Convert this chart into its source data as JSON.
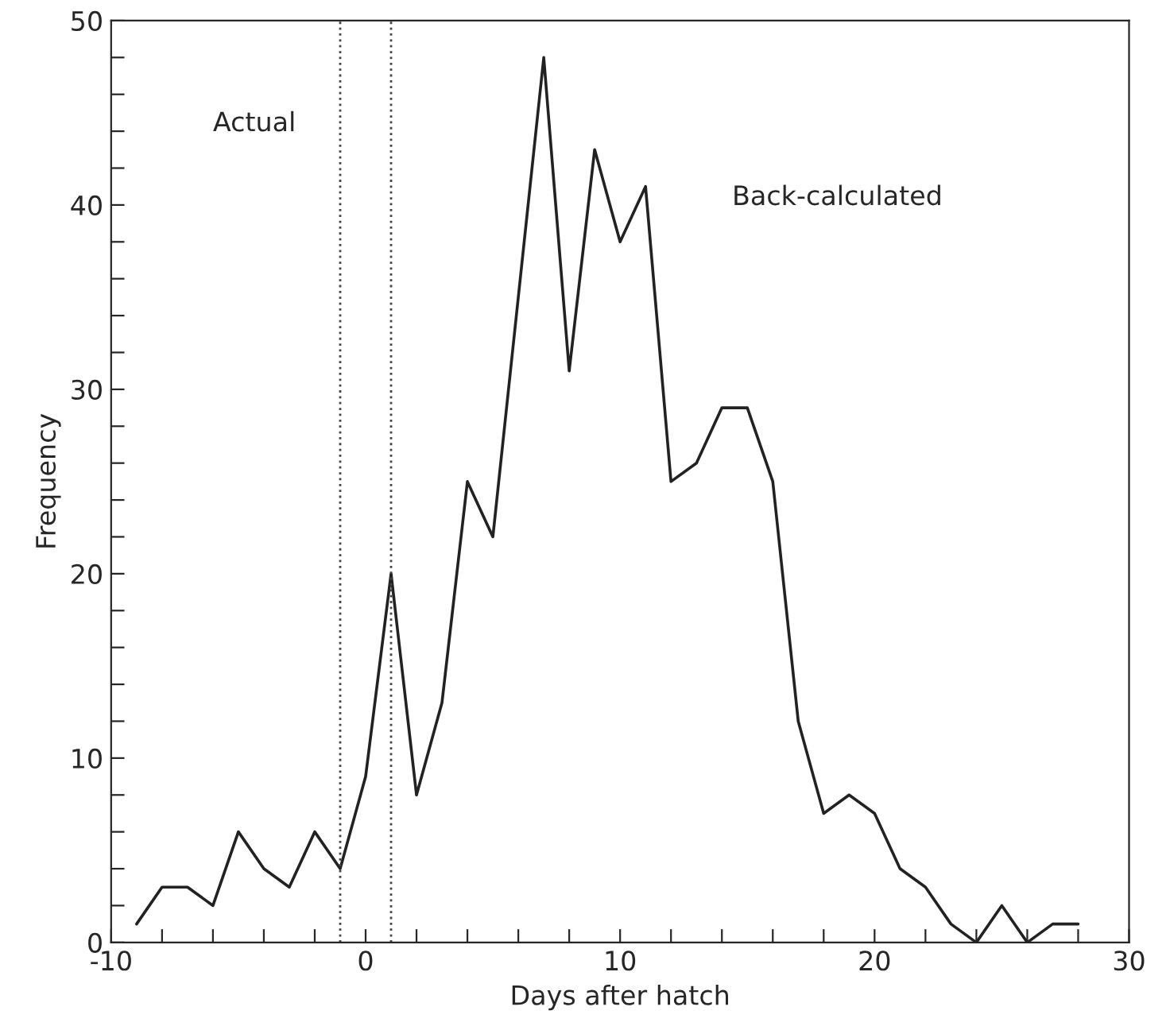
{
  "chart_data": {
    "type": "line",
    "xlabel": "Days after hatch",
    "ylabel": "Frequency",
    "x": [
      -9,
      -8,
      -7,
      -6,
      -5,
      -4,
      -3,
      -2,
      -1,
      0,
      1,
      2,
      3,
      4,
      5,
      6,
      7,
      8,
      9,
      10,
      11,
      12,
      13,
      14,
      15,
      16,
      17,
      18,
      19,
      20,
      21,
      22,
      23,
      24,
      25,
      26,
      27,
      28
    ],
    "series": [
      {
        "color": "#222222",
        "values": [
          1,
          3,
          3,
          2,
          6,
          4,
          3,
          6,
          4,
          9,
          20,
          8,
          13,
          25,
          22,
          35,
          48,
          31,
          43,
          38,
          41,
          25,
          26,
          29,
          29,
          25,
          12,
          7,
          8,
          7,
          4,
          3,
          1,
          0,
          2,
          0,
          1,
          1
        ]
      }
    ],
    "xlim": [
      -10,
      30
    ],
    "xticks": [
      -10,
      {
        "value": -8,
        "label": null
      },
      {
        "value": -6,
        "label": null
      },
      {
        "value": -4,
        "label": null
      },
      {
        "value": -2,
        "label": null
      },
      0,
      {
        "value": 2,
        "label": null
      },
      {
        "value": 4,
        "label": null
      },
      {
        "value": 6,
        "label": null
      },
      {
        "value": 8,
        "label": null
      },
      10,
      {
        "value": 12,
        "label": null
      },
      {
        "value": 14,
        "label": null
      },
      {
        "value": 16,
        "label": null
      },
      {
        "value": 18,
        "label": null
      },
      20,
      {
        "value": 22,
        "label": null
      },
      {
        "value": 24,
        "label": null
      },
      {
        "value": 26,
        "label": null
      },
      {
        "value": 28,
        "label": null
      },
      30
    ],
    "ylim": [
      0,
      50
    ],
    "yticks": [
      0,
      {
        "value": 2,
        "label": null
      },
      {
        "value": 4,
        "label": null
      },
      {
        "value": 6,
        "label": null
      },
      {
        "value": 8,
        "label": null
      },
      10,
      {
        "value": 12,
        "label": null
      },
      {
        "value": 14,
        "label": null
      },
      {
        "value": 16,
        "label": null
      },
      {
        "value": 18,
        "label": null
      },
      20,
      {
        "value": 22,
        "label": null
      },
      {
        "value": 24,
        "label": null
      },
      {
        "value": 26,
        "label": null
      },
      {
        "value": 28,
        "label": null
      },
      30,
      {
        "value": 32,
        "label": null
      },
      {
        "value": 34,
        "label": null
      },
      {
        "value": 36,
        "label": null
      },
      {
        "value": 38,
        "label": null
      },
      40,
      {
        "value": 42,
        "label": null
      },
      {
        "value": 44,
        "label": null
      },
      {
        "value": 46,
        "label": null
      },
      {
        "value": 48,
        "label": null
      },
      50
    ],
    "ref_lines": [
      {
        "axis": "x",
        "value": -1,
        "line_style": "dotted",
        "color": "#444444"
      },
      {
        "axis": "x",
        "value": 1,
        "line_style": "dotted",
        "color": "#444444"
      }
    ],
    "annotations": [
      "Actual",
      "Back-calculated"
    ],
    "grid": false,
    "legend": false,
    "marker": "none",
    "line_style": "solid"
  }
}
